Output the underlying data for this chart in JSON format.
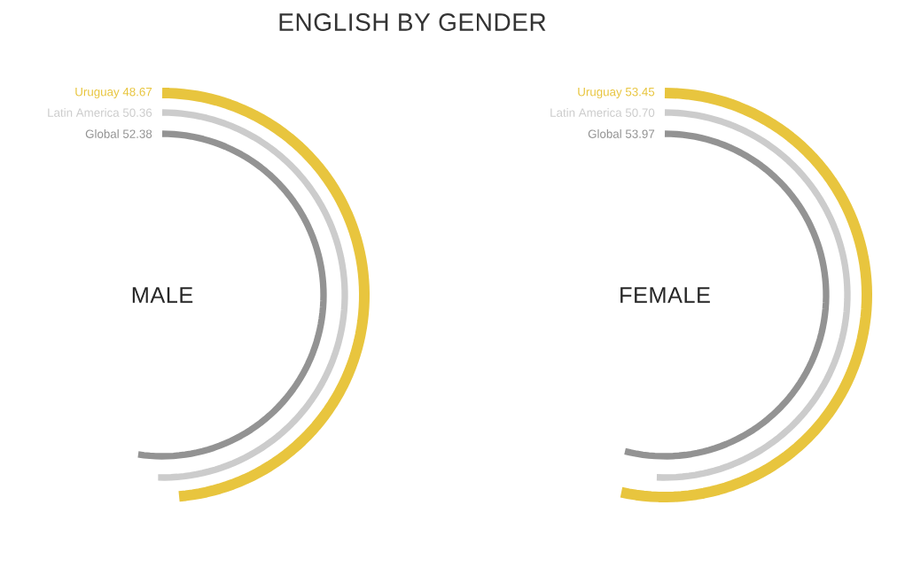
{
  "chart_data": [
    {
      "type": "other",
      "title": "ENGLISH BY GENDER",
      "subtitle": "MALE",
      "categories": [
        "Uruguay",
        "Latin America",
        "Global"
      ],
      "values": [
        48.67,
        50.36,
        52.38
      ],
      "value_labels": [
        "48.67",
        "50.36",
        "52.38"
      ],
      "colors": [
        "#e8c53e",
        "#cccccc",
        "#939393"
      ]
    },
    {
      "type": "other",
      "subtitle": "FEMALE",
      "categories": [
        "Uruguay",
        "Latin America",
        "Global"
      ],
      "values": [
        53.45,
        50.7,
        53.97
      ],
      "value_labels": [
        "53.45",
        "50.70",
        "53.97"
      ],
      "colors": [
        "#e8c53e",
        "#cccccc",
        "#939393"
      ]
    }
  ]
}
